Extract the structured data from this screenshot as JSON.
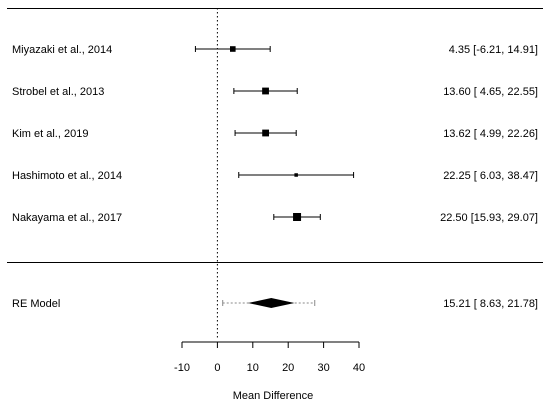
{
  "chart_data": {
    "type": "forest",
    "xlabel": "Mean Difference",
    "xlim": [
      -10,
      40
    ],
    "ticks": [
      -10,
      0,
      10,
      20,
      30,
      40
    ],
    "tick_labels": [
      "-10",
      "0",
      "10",
      "20",
      "30",
      "40"
    ],
    "reference_line": 0,
    "studies": [
      {
        "label": "Miyazaki et al., 2014",
        "estimate": 4.35,
        "lower": -6.21,
        "upper": 14.91,
        "text": "4.35 [-6.21, 14.91]",
        "weight": 0.6
      },
      {
        "label": "Strobel et al., 2013",
        "estimate": 13.6,
        "lower": 4.65,
        "upper": 22.55,
        "text": "13.60 [ 4.65, 22.55]",
        "weight": 0.8
      },
      {
        "label": "Kim et al., 2019",
        "estimate": 13.62,
        "lower": 4.99,
        "upper": 22.26,
        "text": "13.62 [ 4.99, 22.26]",
        "weight": 0.8
      },
      {
        "label": "Hashimoto et al., 2014",
        "estimate": 22.25,
        "lower": 6.03,
        "upper": 38.47,
        "text": "22.25 [ 6.03, 38.47]",
        "weight": 0.25
      },
      {
        "label": "Nakayama et al., 2017",
        "estimate": 22.5,
        "lower": 15.93,
        "upper": 29.07,
        "text": "22.50 [15.93, 29.07]",
        "weight": 1.0
      }
    ],
    "summary": {
      "label": "RE Model",
      "estimate": 15.21,
      "lower": 8.63,
      "upper": 21.78,
      "pi_lower": 1.5,
      "pi_upper": 27.5,
      "text": "15.21 [ 8.63, 21.78]"
    }
  }
}
